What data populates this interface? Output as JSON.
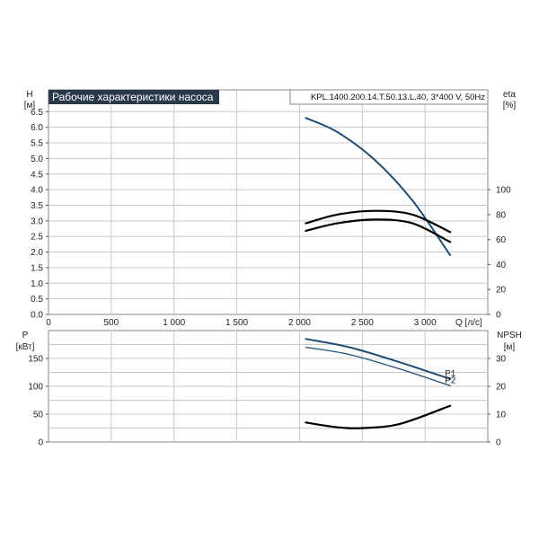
{
  "chart_data": [
    {
      "type": "line",
      "title": "Рабочие характеристики насоса",
      "model": "KPL.1400.200.14.T.50.13.L.40, 3*400 V, 50Hz",
      "xlabel": "Q [л/с]",
      "x_ticks": [
        "0",
        "500",
        "1 000",
        "1 500",
        "2 000",
        "2 500",
        "3 000"
      ],
      "xlim": [
        0,
        3500
      ],
      "left_axis": {
        "label": "H",
        "unit": "[м]",
        "ylim": [
          0,
          7.2
        ],
        "ticks": [
          "0.0",
          "0.5",
          "1.0",
          "1.5",
          "2.0",
          "2.5",
          "3.0",
          "3.5",
          "4.0",
          "4.5",
          "5.0",
          "5.5",
          "6.0",
          "6.5"
        ]
      },
      "right_axis": {
        "label": "eta",
        "unit": "[%]",
        "ylim": [
          0,
          180
        ],
        "ticks": [
          "0",
          "20",
          "40",
          "60",
          "80",
          "100"
        ]
      },
      "series": [
        {
          "axis": "left",
          "color": "#1f4e79",
          "x": [
            2050,
            2300,
            2600,
            2900,
            3200
          ],
          "y": [
            6.3,
            5.85,
            4.95,
            3.65,
            1.9
          ]
        },
        {
          "axis": "right",
          "color": "#000000",
          "x": [
            2050,
            2300,
            2600,
            2900,
            3200
          ],
          "y": [
            73,
            80,
            83,
            80,
            66
          ]
        },
        {
          "axis": "right",
          "color": "#000000",
          "x": [
            2050,
            2300,
            2600,
            2900,
            3200
          ],
          "y": [
            67,
            73,
            76,
            73,
            58
          ]
        }
      ]
    },
    {
      "type": "line",
      "xlim": [
        0,
        3500
      ],
      "left_axis": {
        "label": "P",
        "unit": "[кВт]",
        "ylim": [
          0,
          200
        ],
        "ticks": [
          "0",
          "50",
          "100",
          "150"
        ]
      },
      "right_axis": {
        "label": "NPSH",
        "unit": "[м]",
        "ylim": [
          0,
          40
        ],
        "ticks": [
          "0",
          "10",
          "20",
          "30"
        ]
      },
      "series": [
        {
          "name": "P1",
          "axis": "left",
          "color": "#1f4e79",
          "x": [
            2050,
            2400,
            2800,
            3200
          ],
          "y": [
            185,
            170,
            143,
            113
          ]
        },
        {
          "name": "P2",
          "axis": "left",
          "color": "#1f4e79",
          "x": [
            2050,
            2400,
            2800,
            3200
          ],
          "y": [
            170,
            157,
            131,
            101
          ]
        },
        {
          "axis": "right",
          "color": "#000000",
          "x": [
            2050,
            2300,
            2500,
            2800,
            3200
          ],
          "y": [
            7,
            5.3,
            5,
            6.5,
            13
          ]
        }
      ]
    }
  ]
}
